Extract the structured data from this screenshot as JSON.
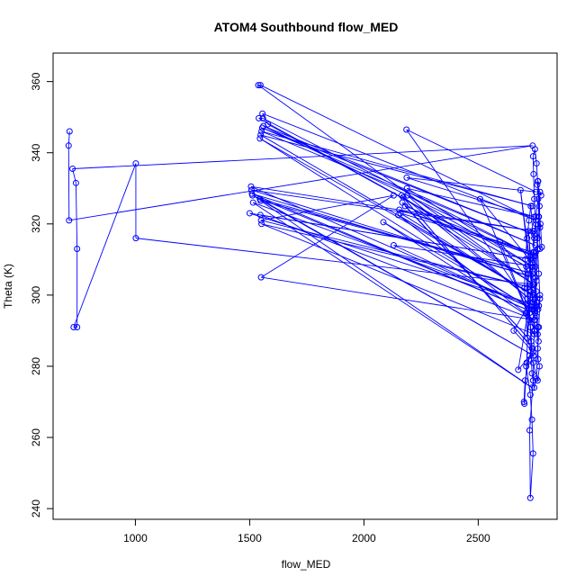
{
  "chart_data": {
    "type": "line",
    "title": "ATOM4 Southbound flow_MED",
    "xlabel": "flow_MED",
    "ylabel": "Theta (K)",
    "xlim": [
      640,
      2845
    ],
    "ylim": [
      237,
      368
    ],
    "xticks": [
      1000,
      1500,
      2000,
      2500
    ],
    "yticks": [
      240,
      260,
      280,
      300,
      320,
      340,
      360
    ],
    "grid": false,
    "legend": "none",
    "series": [
      {
        "marker": "open-circle",
        "line": true,
        "points": [
          [
            712,
            346
          ],
          [
            708,
            342
          ],
          [
            710,
            321
          ],
          [
            2738,
            342
          ],
          [
            725,
            335.5
          ],
          [
            740,
            331.5
          ],
          [
            745,
            313
          ],
          [
            745,
            291
          ],
          [
            730,
            291
          ],
          [
            1002,
            337
          ],
          [
            1002,
            316
          ],
          [
            2740,
            303
          ],
          [
            1538,
            359
          ],
          [
            1547,
            359
          ],
          [
            2752,
            321
          ],
          [
            1556,
            351
          ],
          [
            1580,
            348
          ],
          [
            2740,
            307
          ],
          [
            1540,
            349.7
          ],
          [
            1558,
            349.7
          ],
          [
            2742,
            311
          ],
          [
            1560,
            347.5
          ],
          [
            2745,
            317
          ],
          [
            1555,
            347
          ],
          [
            2750,
            314
          ],
          [
            1552,
            346
          ],
          [
            2738,
            325
          ],
          [
            1548,
            345
          ],
          [
            2745,
            300
          ],
          [
            1545,
            344
          ],
          [
            2735,
            296
          ],
          [
            2186,
            346.5
          ],
          [
            2752,
            329
          ],
          [
            2187,
            333
          ],
          [
            2745,
            322
          ],
          [
            2188,
            330
          ],
          [
            2740,
            308
          ],
          [
            2190,
            328
          ],
          [
            2742,
            298
          ],
          [
            2165,
            328
          ],
          [
            2738,
            285
          ],
          [
            2172,
            327.5
          ],
          [
            2745,
            303
          ],
          [
            2168,
            326
          ],
          [
            2732,
            287
          ],
          [
            2180,
            325
          ],
          [
            2748,
            311
          ],
          [
            2155,
            324
          ],
          [
            2740,
            312
          ],
          [
            2160,
            323
          ],
          [
            2738,
            300
          ],
          [
            2150,
            322.5
          ],
          [
            2745,
            293
          ],
          [
            2085,
            320.5
          ],
          [
            2742,
            296
          ],
          [
            2130,
            314
          ],
          [
            2750,
            308
          ],
          [
            2508,
            327
          ],
          [
            2748,
            290
          ],
          [
            2595,
            315
          ],
          [
            2755,
            301
          ],
          [
            2655,
            290
          ],
          [
            2740,
            284
          ],
          [
            2675,
            279
          ],
          [
            2738,
            303
          ],
          [
            2685,
            329.5
          ],
          [
            2745,
            296
          ],
          [
            1506,
            330.5
          ],
          [
            2745,
            318
          ],
          [
            1508,
            329.5
          ],
          [
            2740,
            305
          ],
          [
            1510,
            328.5
          ],
          [
            2748,
            295
          ],
          [
            1512,
            328
          ],
          [
            2742,
            283
          ],
          [
            1545,
            327
          ],
          [
            2740,
            306
          ],
          [
            1548,
            326.5
          ],
          [
            2735,
            274
          ],
          [
            1515,
            326
          ],
          [
            2750,
            297
          ],
          [
            1500,
            323
          ],
          [
            2740,
            310
          ],
          [
            1547,
            322.5
          ],
          [
            2748,
            293
          ],
          [
            1550,
            305
          ],
          [
            2130,
            328
          ],
          [
            1550,
            321
          ],
          [
            2740,
            302
          ],
          [
            1552,
            320
          ],
          [
            2745,
            289
          ],
          [
            2720,
            318
          ],
          [
            2730,
            310
          ],
          [
            2715,
            302
          ],
          [
            2725,
            295
          ],
          [
            2735,
            285
          ],
          [
            2710,
            280
          ],
          [
            2728,
            272
          ],
          [
            2735,
            265
          ],
          [
            2740,
            255.5
          ],
          [
            2728,
            243
          ],
          [
            2725,
            262
          ],
          [
            2740,
            276
          ],
          [
            2745,
            290
          ],
          [
            2755,
            304
          ],
          [
            2760,
            316
          ],
          [
            2765,
            322
          ],
          [
            2770,
            329
          ],
          [
            2775,
            328
          ],
          [
            2758,
            331
          ],
          [
            2762,
            332
          ],
          [
            2768,
            325
          ],
          [
            2770,
            319
          ],
          [
            2752,
            312
          ],
          [
            2748,
            299
          ],
          [
            2745,
            295.5
          ],
          [
            2762,
            296
          ],
          [
            2770,
            300
          ],
          [
            2765,
            297
          ],
          [
            2755,
            294
          ],
          [
            2760,
            289
          ],
          [
            2762,
            282
          ],
          [
            2768,
            280
          ],
          [
            2760,
            276
          ],
          [
            2740,
            281
          ],
          [
            2725,
            283
          ],
          [
            2705,
            276
          ],
          [
            2700,
            270
          ],
          [
            2702,
            269.5
          ],
          [
            2712,
            281
          ],
          [
            2720,
            297
          ],
          [
            2718,
            306
          ],
          [
            2710,
            308
          ],
          [
            2715,
            299
          ],
          [
            2728,
            291
          ],
          [
            2735,
            278
          ],
          [
            2745,
            274
          ],
          [
            2755,
            276.5
          ],
          [
            2760,
            285
          ],
          [
            2765,
            291
          ],
          [
            2770,
            299
          ],
          [
            2765,
            306
          ],
          [
            2760,
            313
          ],
          [
            2752,
            320
          ],
          [
            2745,
            327
          ],
          [
            2742,
            334
          ],
          [
            2740,
            339
          ],
          [
            2748,
            341
          ],
          [
            2755,
            337
          ],
          [
            2760,
            332
          ],
          [
            2765,
            322
          ],
          [
            2770,
            313
          ],
          [
            2778,
            313.5
          ],
          [
            2772,
            320
          ],
          [
            2762,
            327
          ],
          [
            2752,
            322
          ],
          [
            2745,
            316
          ],
          [
            2738,
            309
          ],
          [
            2730,
            301
          ],
          [
            2722,
            293
          ],
          [
            2715,
            288
          ],
          [
            2708,
            295
          ],
          [
            2702,
            302
          ],
          [
            2706,
            310
          ],
          [
            2714,
            316
          ],
          [
            2722,
            321
          ],
          [
            2730,
            325
          ],
          [
            2738,
            318
          ],
          [
            2744,
            312
          ],
          [
            2750,
            305
          ],
          [
            2756,
            298
          ],
          [
            2760,
            291
          ],
          [
            2764,
            287
          ]
        ]
      }
    ]
  }
}
